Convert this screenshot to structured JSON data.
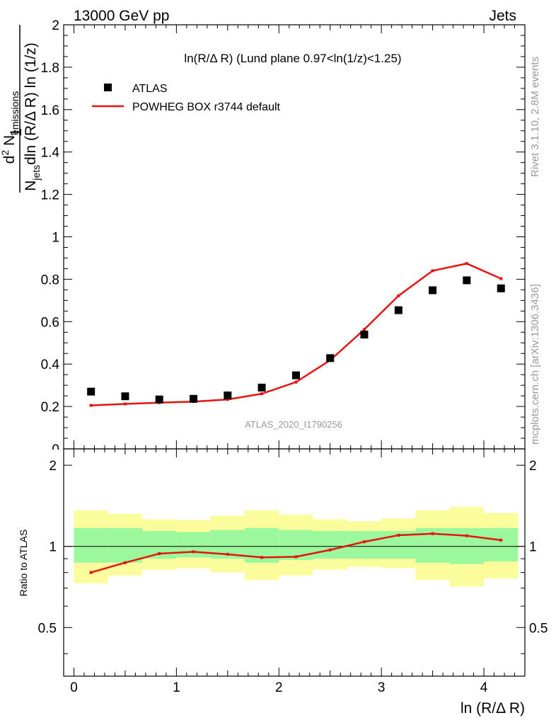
{
  "header": {
    "left_label": "13000 GeV pp",
    "right_label": "Jets"
  },
  "side_labels": {
    "rivet": "Rivet 3.1.10,  2.8M events",
    "mcplots": "mcplots.cern.ch [arXiv:1306.3436]"
  },
  "watermark": "ATLAS_2020_I1790256",
  "colors": {
    "data": "#000000",
    "mc": "#e8120f",
    "band_inner": "#9cf89c",
    "band_outer": "#fbfc9c",
    "watermark": "#9a9a9a"
  },
  "chart_data": [
    {
      "type": "scatter",
      "panel": "main",
      "title": "ln(R/Δ R) (Lund plane 0.97<ln(1/z)<1.25)",
      "ylabel": "1 / N_jets dln (R/Δ R) ln (1/z) · d² N_emissions",
      "ylabel_parts": {
        "numer_one": "1",
        "numer_d2": "d",
        "numer_sup": "2",
        "numer_N": " N",
        "numer_sub": "emissions",
        "denom_N": "N",
        "denom_sub": "jets",
        "denom_rest": "dln (R/Δ R) ln (1/z)"
      },
      "xlim": [
        -0.1,
        4.4
      ],
      "ylim": [
        0,
        2
      ],
      "x_ticks": [
        0,
        1,
        2,
        3,
        4
      ],
      "y_ticks": [
        0,
        0.2,
        0.4,
        0.6,
        0.8,
        1,
        1.2,
        1.4,
        1.6,
        1.8,
        2
      ],
      "y_tick_labels": [
        "0",
        "0.2",
        "0.4",
        "0.6",
        "0.8",
        "1",
        "1.2",
        "1.4",
        "1.6",
        "1.8",
        "2"
      ],
      "legend": [
        {
          "label": "ATLAS",
          "kind": "marker"
        },
        {
          "label": "POWHEG BOX r3744 default",
          "kind": "line"
        }
      ],
      "x": [
        0.167,
        0.5,
        0.833,
        1.167,
        1.5,
        1.833,
        2.167,
        2.5,
        2.833,
        3.167,
        3.5,
        3.833,
        4.167
      ],
      "series": [
        {
          "name": "ATLAS",
          "values": [
            0.27,
            0.248,
            0.233,
            0.236,
            0.252,
            0.289,
            0.347,
            0.428,
            0.539,
            0.654,
            0.748,
            0.795,
            0.757
          ]
        },
        {
          "name": "POWHEG BOX r3744 default",
          "values": [
            0.205,
            0.212,
            0.218,
            0.223,
            0.233,
            0.26,
            0.315,
            0.418,
            0.563,
            0.722,
            0.84,
            0.874,
            0.803
          ]
        }
      ]
    },
    {
      "type": "line",
      "panel": "ratio",
      "ylabel": "Ratio to ATLAS",
      "xlabel": "ln (R/Δ R)",
      "xlim": [
        -0.1,
        4.4
      ],
      "ylim": [
        0.33,
        2.3
      ],
      "log_y": true,
      "x_ticks": [
        0,
        1,
        2,
        3,
        4
      ],
      "x_tick_labels": [
        "0",
        "1",
        "2",
        "3",
        "4"
      ],
      "y_ticks": [
        0.5,
        1,
        2
      ],
      "y_tick_labels": [
        "0.5",
        "1",
        "2"
      ],
      "bin_edges": [
        0,
        0.333,
        0.667,
        1,
        1.333,
        1.667,
        2,
        2.333,
        2.667,
        3,
        3.333,
        3.667,
        4,
        4.333
      ],
      "band_inner_low": [
        0.87,
        0.87,
        0.9,
        0.91,
        0.9,
        0.87,
        0.89,
        0.9,
        0.9,
        0.9,
        0.87,
        0.86,
        0.88
      ],
      "band_inner_high": [
        1.17,
        1.17,
        1.14,
        1.13,
        1.15,
        1.17,
        1.15,
        1.14,
        1.14,
        1.14,
        1.17,
        1.17,
        1.17
      ],
      "band_outer_low": [
        0.73,
        0.78,
        0.82,
        0.83,
        0.8,
        0.75,
        0.78,
        0.82,
        0.84,
        0.83,
        0.75,
        0.71,
        0.76
      ],
      "band_outer_high": [
        1.36,
        1.32,
        1.26,
        1.25,
        1.3,
        1.36,
        1.31,
        1.26,
        1.24,
        1.27,
        1.36,
        1.4,
        1.33
      ],
      "x": [
        0.167,
        0.5,
        0.833,
        1.167,
        1.5,
        1.833,
        2.167,
        2.5,
        2.833,
        3.167,
        3.5,
        3.833,
        4.167
      ],
      "series": [
        {
          "name": "POWHEG BOX r3744 default",
          "values": [
            0.8,
            0.87,
            0.94,
            0.955,
            0.935,
            0.91,
            0.915,
            0.97,
            1.04,
            1.1,
            1.115,
            1.095,
            1.055
          ]
        }
      ]
    }
  ]
}
